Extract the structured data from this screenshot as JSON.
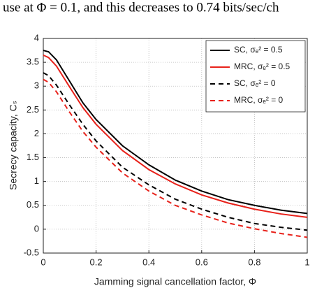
{
  "header_text": "use at Φ = 0.1, and this decreases to 0.74 bits/sec/ch",
  "chart_data": {
    "type": "line",
    "xlabel": "Jamming signal cancellation factor,  Φ",
    "ylabel": "Secrecy capacity, Cₛ",
    "x": [
      0,
      0.02,
      0.05,
      0.1,
      0.15,
      0.2,
      0.3,
      0.4,
      0.5,
      0.6,
      0.7,
      0.8,
      0.9,
      1
    ],
    "series": [
      {
        "name": "SC, σₑ² = 0.5",
        "color": "#000000",
        "dashed": false,
        "values": [
          3.75,
          3.72,
          3.55,
          3.1,
          2.65,
          2.3,
          1.75,
          1.35,
          1.03,
          0.8,
          0.62,
          0.5,
          0.4,
          0.33
        ]
      },
      {
        "name": "MRC, σₑ² = 0.5",
        "color": "#e8211a",
        "dashed": false,
        "values": [
          3.65,
          3.6,
          3.42,
          2.98,
          2.55,
          2.2,
          1.65,
          1.25,
          0.95,
          0.72,
          0.55,
          0.42,
          0.32,
          0.25
        ]
      },
      {
        "name": "SC, σₑ² = 0",
        "color": "#000000",
        "dashed": true,
        "values": [
          3.28,
          3.22,
          3.02,
          2.6,
          2.2,
          1.85,
          1.3,
          0.93,
          0.63,
          0.42,
          0.25,
          0.12,
          0.04,
          -0.02
        ]
      },
      {
        "name": "MRC, σₑ² = 0",
        "color": "#e8211a",
        "dashed": true,
        "values": [
          3.14,
          3.08,
          2.88,
          2.45,
          2.05,
          1.72,
          1.18,
          0.8,
          0.5,
          0.3,
          0.13,
          0.01,
          -0.09,
          -0.17
        ]
      }
    ],
    "xlim": [
      0,
      1
    ],
    "xticks": [
      0,
      0.2,
      0.4,
      0.6,
      0.8,
      1
    ],
    "ylim": [
      -0.5,
      4
    ],
    "yticks": [
      -0.5,
      0,
      0.5,
      1,
      1.5,
      2,
      2.5,
      3,
      3.5,
      4
    ],
    "grid": true,
    "legend": "upper right"
  }
}
